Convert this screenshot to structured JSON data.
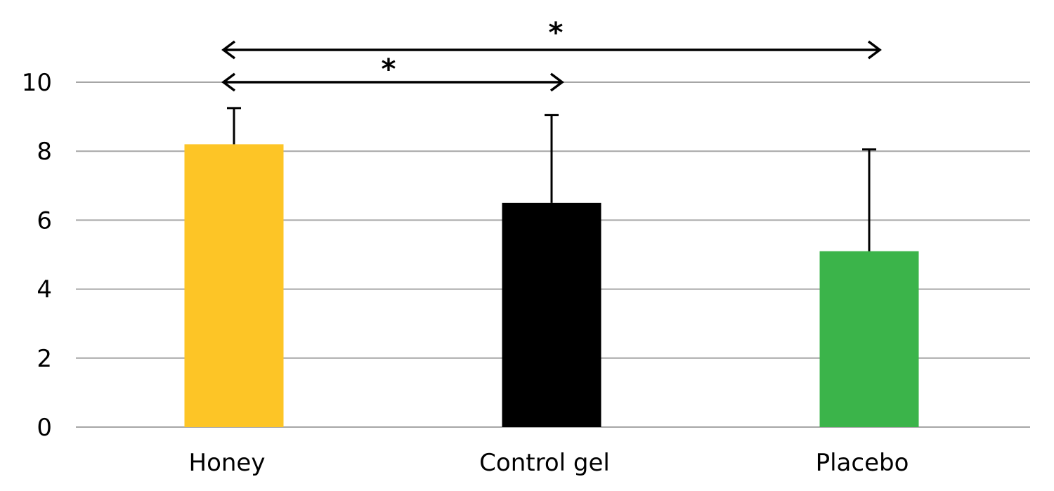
{
  "chart_data": {
    "type": "bar",
    "categories": [
      "Honey",
      "Control gel",
      "Placebo"
    ],
    "series": [
      {
        "values": [
          8.2,
          6.5,
          5.1
        ],
        "errors": [
          1.05,
          2.55,
          2.95
        ],
        "colors": [
          "#fdc526",
          "#000000",
          "#3bb44a"
        ]
      }
    ],
    "yticks": [
      "0",
      "2",
      "4",
      "6",
      "8",
      "10"
    ],
    "ylim": [
      0,
      10
    ],
    "grid": true,
    "legend": "none",
    "significance": [
      {
        "from": "Honey",
        "to": "Control gel",
        "label": "*"
      },
      {
        "from": "Honey",
        "to": "Placebo",
        "label": "*"
      }
    ]
  }
}
